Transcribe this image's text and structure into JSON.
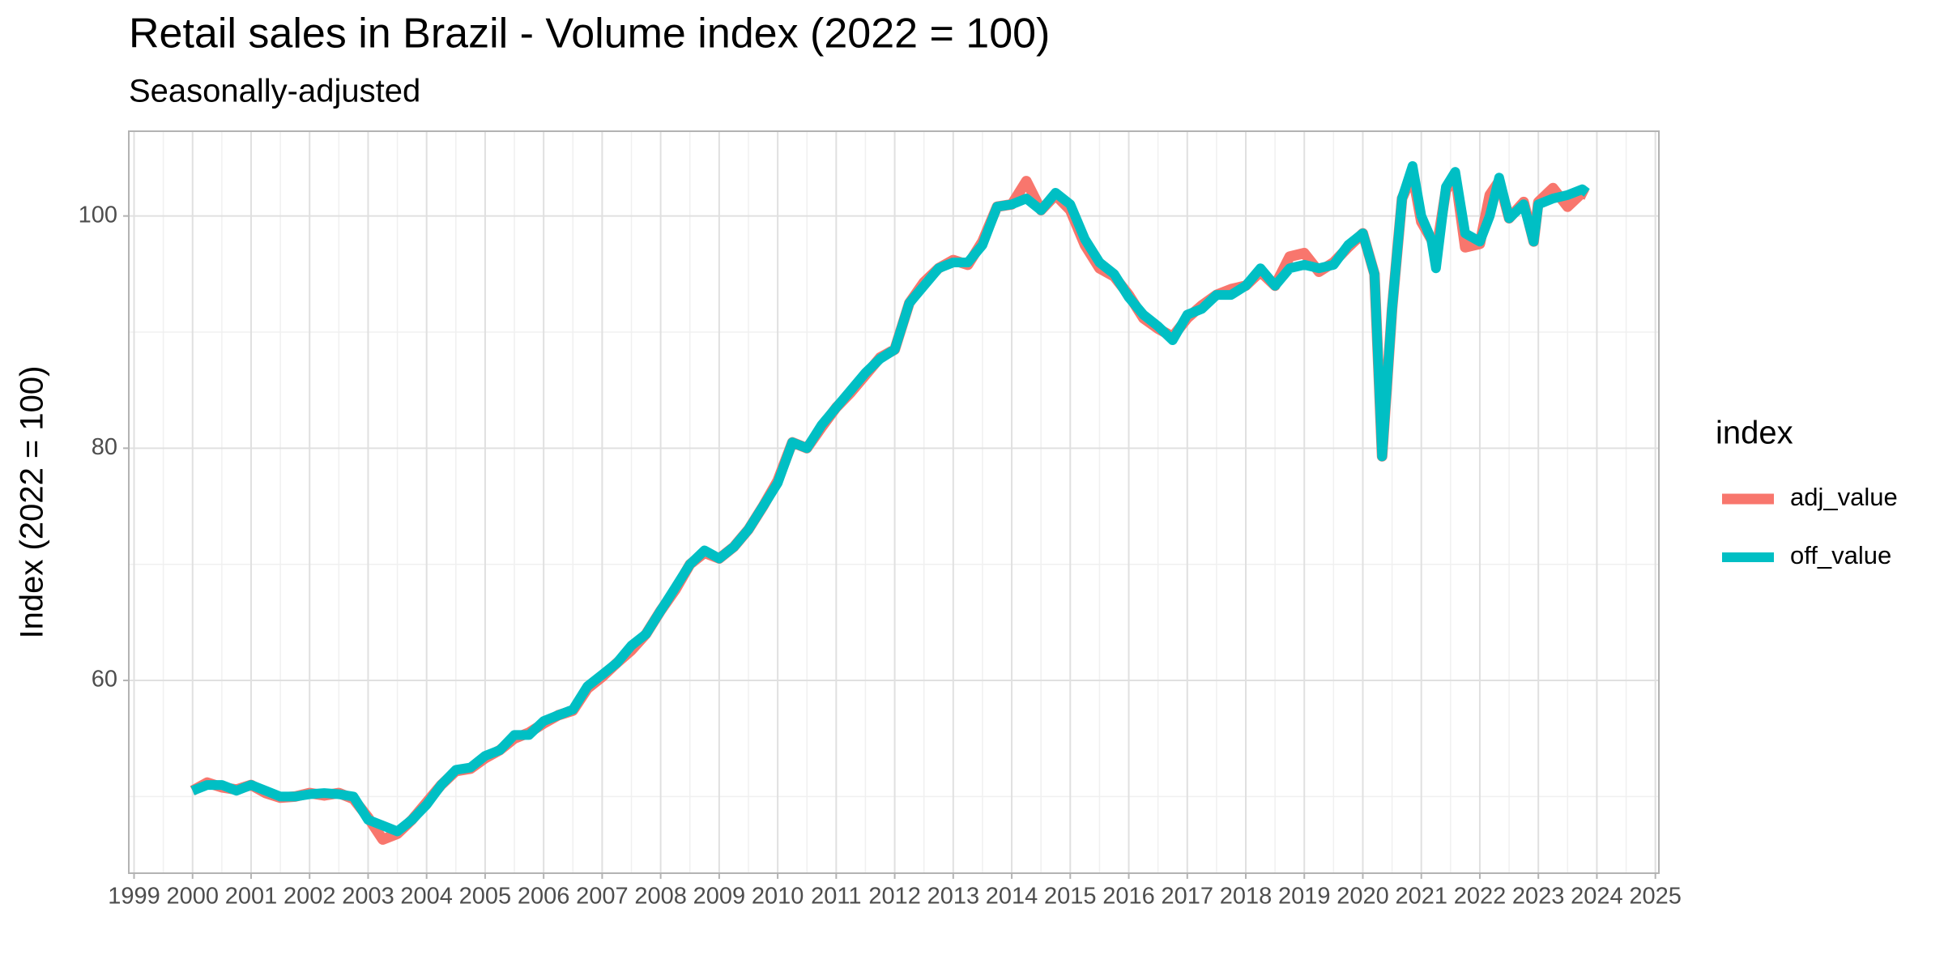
{
  "chart_data": {
    "type": "line",
    "title": "Retail sales in Brazil - Volume index (2022 = 100)",
    "subtitle": "Seasonally-adjusted",
    "y_label": "Index (2022 = 100)",
    "legend_title": "index",
    "legend_position": "right",
    "grid": true,
    "xlim": [
      1998.91,
      2025.06
    ],
    "xticks": [
      1999,
      2000,
      2001,
      2002,
      2003,
      2004,
      2005,
      2006,
      2007,
      2008,
      2009,
      2010,
      2011,
      2012,
      2013,
      2014,
      2015,
      2016,
      2017,
      2018,
      2019,
      2020,
      2021,
      2022,
      2023,
      2024,
      2025
    ],
    "ylim": [
      43.4,
      107.3
    ],
    "yticks": [
      60,
      80,
      100
    ],
    "x": [
      2000.0,
      2000.25,
      2000.5,
      2000.75,
      2001.0,
      2001.25,
      2001.5,
      2001.75,
      2002.0,
      2002.25,
      2002.5,
      2002.75,
      2003.0,
      2003.25,
      2003.5,
      2003.75,
      2004.0,
      2004.25,
      2004.5,
      2004.75,
      2005.0,
      2005.25,
      2005.5,
      2005.75,
      2006.0,
      2006.25,
      2006.5,
      2006.75,
      2007.0,
      2007.25,
      2007.5,
      2007.75,
      2008.0,
      2008.25,
      2008.5,
      2008.75,
      2009.0,
      2009.25,
      2009.5,
      2009.75,
      2010.0,
      2010.25,
      2010.5,
      2010.75,
      2011.0,
      2011.25,
      2011.5,
      2011.75,
      2012.0,
      2012.25,
      2012.5,
      2012.75,
      2013.0,
      2013.25,
      2013.5,
      2013.75,
      2014.0,
      2014.25,
      2014.5,
      2014.75,
      2015.0,
      2015.25,
      2015.5,
      2015.75,
      2016.0,
      2016.25,
      2016.5,
      2016.75,
      2017.0,
      2017.25,
      2017.5,
      2017.75,
      2018.0,
      2018.25,
      2018.5,
      2018.75,
      2019.0,
      2019.25,
      2019.5,
      2019.75,
      2020.0,
      2020.2,
      2020.33,
      2020.5,
      2020.67,
      2020.85,
      2021.0,
      2021.17,
      2021.25,
      2021.42,
      2021.58,
      2021.75,
      2022.0,
      2022.17,
      2022.33,
      2022.5,
      2022.75,
      2022.92,
      2023.0,
      2023.25,
      2023.5,
      2023.75,
      2023.83
    ],
    "series": [
      {
        "name": "adj_value",
        "color": "#F8766D",
        "values": [
          50.5,
          51.2,
          50.8,
          50.6,
          51,
          50.3,
          49.9,
          50,
          50.3,
          50.1,
          50.3,
          49.8,
          48.2,
          46.3,
          46.8,
          48,
          49.5,
          51,
          52.2,
          52.4,
          53.3,
          54,
          55,
          55.5,
          56.3,
          57,
          57.4,
          59.3,
          60.3,
          61.5,
          62.6,
          64,
          66,
          67.8,
          70,
          71,
          70.5,
          71.5,
          73,
          75,
          77.2,
          80.5,
          80,
          81.8,
          83.5,
          84.8,
          86.3,
          87.8,
          88.5,
          92.5,
          94.3,
          95.5,
          96.2,
          95.8,
          97.8,
          100.8,
          101,
          103,
          100.5,
          101.8,
          100.5,
          97.5,
          95.5,
          94.8,
          93.2,
          91.2,
          90.3,
          89.6,
          91.2,
          92.3,
          93.2,
          93.7,
          94,
          95.2,
          94,
          96.5,
          96.8,
          95.2,
          96,
          97.3,
          98.5,
          95,
          79.3,
          92,
          101.5,
          103.6,
          99.5,
          98,
          96.8,
          102.2,
          103.5,
          97.3,
          97.6,
          101.8,
          103,
          99.8,
          101.2,
          97.8,
          101.2,
          102.4,
          100.8,
          102,
          101.8
        ]
      },
      {
        "name": "off_value",
        "color": "#00BFC4",
        "values": [
          50.5,
          51,
          51,
          50.5,
          51,
          50.5,
          50,
          50,
          50.2,
          50.3,
          50.2,
          50,
          48,
          47.5,
          47,
          48,
          49.3,
          51,
          52.3,
          52.5,
          53.5,
          54,
          55.3,
          55.3,
          56.5,
          57,
          57.5,
          59.5,
          60.5,
          61.5,
          63,
          64,
          66,
          68,
          70,
          71.2,
          70.5,
          71.5,
          73,
          75,
          77,
          80.5,
          80,
          82,
          83.5,
          85,
          86.5,
          87.7,
          88.5,
          92.5,
          94,
          95.5,
          96,
          96,
          97.5,
          100.8,
          101,
          101.5,
          100.5,
          102,
          101,
          98,
          96,
          95,
          93,
          91.5,
          90.5,
          89.3,
          91.5,
          92,
          93.2,
          93.2,
          94,
          95.5,
          94,
          95.5,
          95.8,
          95.5,
          95.8,
          97.5,
          98.5,
          95,
          79.3,
          92,
          101.5,
          104.3,
          100,
          98,
          95.5,
          102.5,
          103.8,
          98.5,
          97.8,
          100,
          103.3,
          99.8,
          101,
          97.8,
          101,
          101.5,
          101.8,
          102.3,
          102
        ]
      }
    ]
  }
}
